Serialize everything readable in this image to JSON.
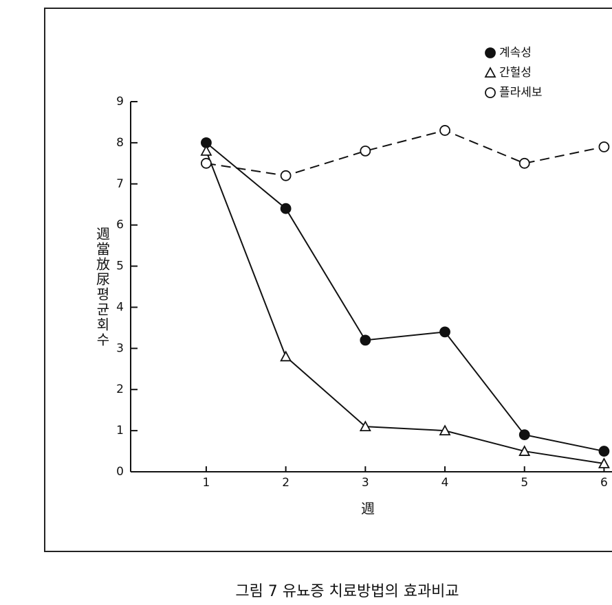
{
  "chart_data": {
    "type": "line",
    "caption": "그림 7  유뇨증 치료방법의 효과비교",
    "x_label": "週",
    "y_label": "週當放尿평균회수",
    "x": [
      1,
      2,
      3,
      4,
      5,
      6
    ],
    "xlim": [
      0.05,
      6.1
    ],
    "xticks": [
      1,
      2,
      3,
      4,
      5,
      6
    ],
    "ylim": [
      0,
      9
    ],
    "yticks": [
      0,
      1,
      2,
      3,
      4,
      5,
      6,
      7,
      8,
      9
    ],
    "legend": "upper right",
    "series": [
      {
        "name": "계속성",
        "color": "#111111",
        "marker": "circle",
        "filled": true,
        "dashed": false,
        "values": [
          8.0,
          6.4,
          3.2,
          3.4,
          0.9,
          0.5
        ]
      },
      {
        "name": "간헐성",
        "color": "#111111",
        "marker": "triangle",
        "filled": false,
        "dashed": false,
        "values": [
          7.8,
          2.8,
          1.1,
          1.0,
          0.5,
          0.2
        ]
      },
      {
        "name": "플라세보",
        "color": "#111111",
        "marker": "circle",
        "filled": false,
        "dashed": true,
        "values": [
          7.5,
          7.2,
          7.8,
          8.3,
          7.5,
          7.9
        ]
      }
    ]
  }
}
